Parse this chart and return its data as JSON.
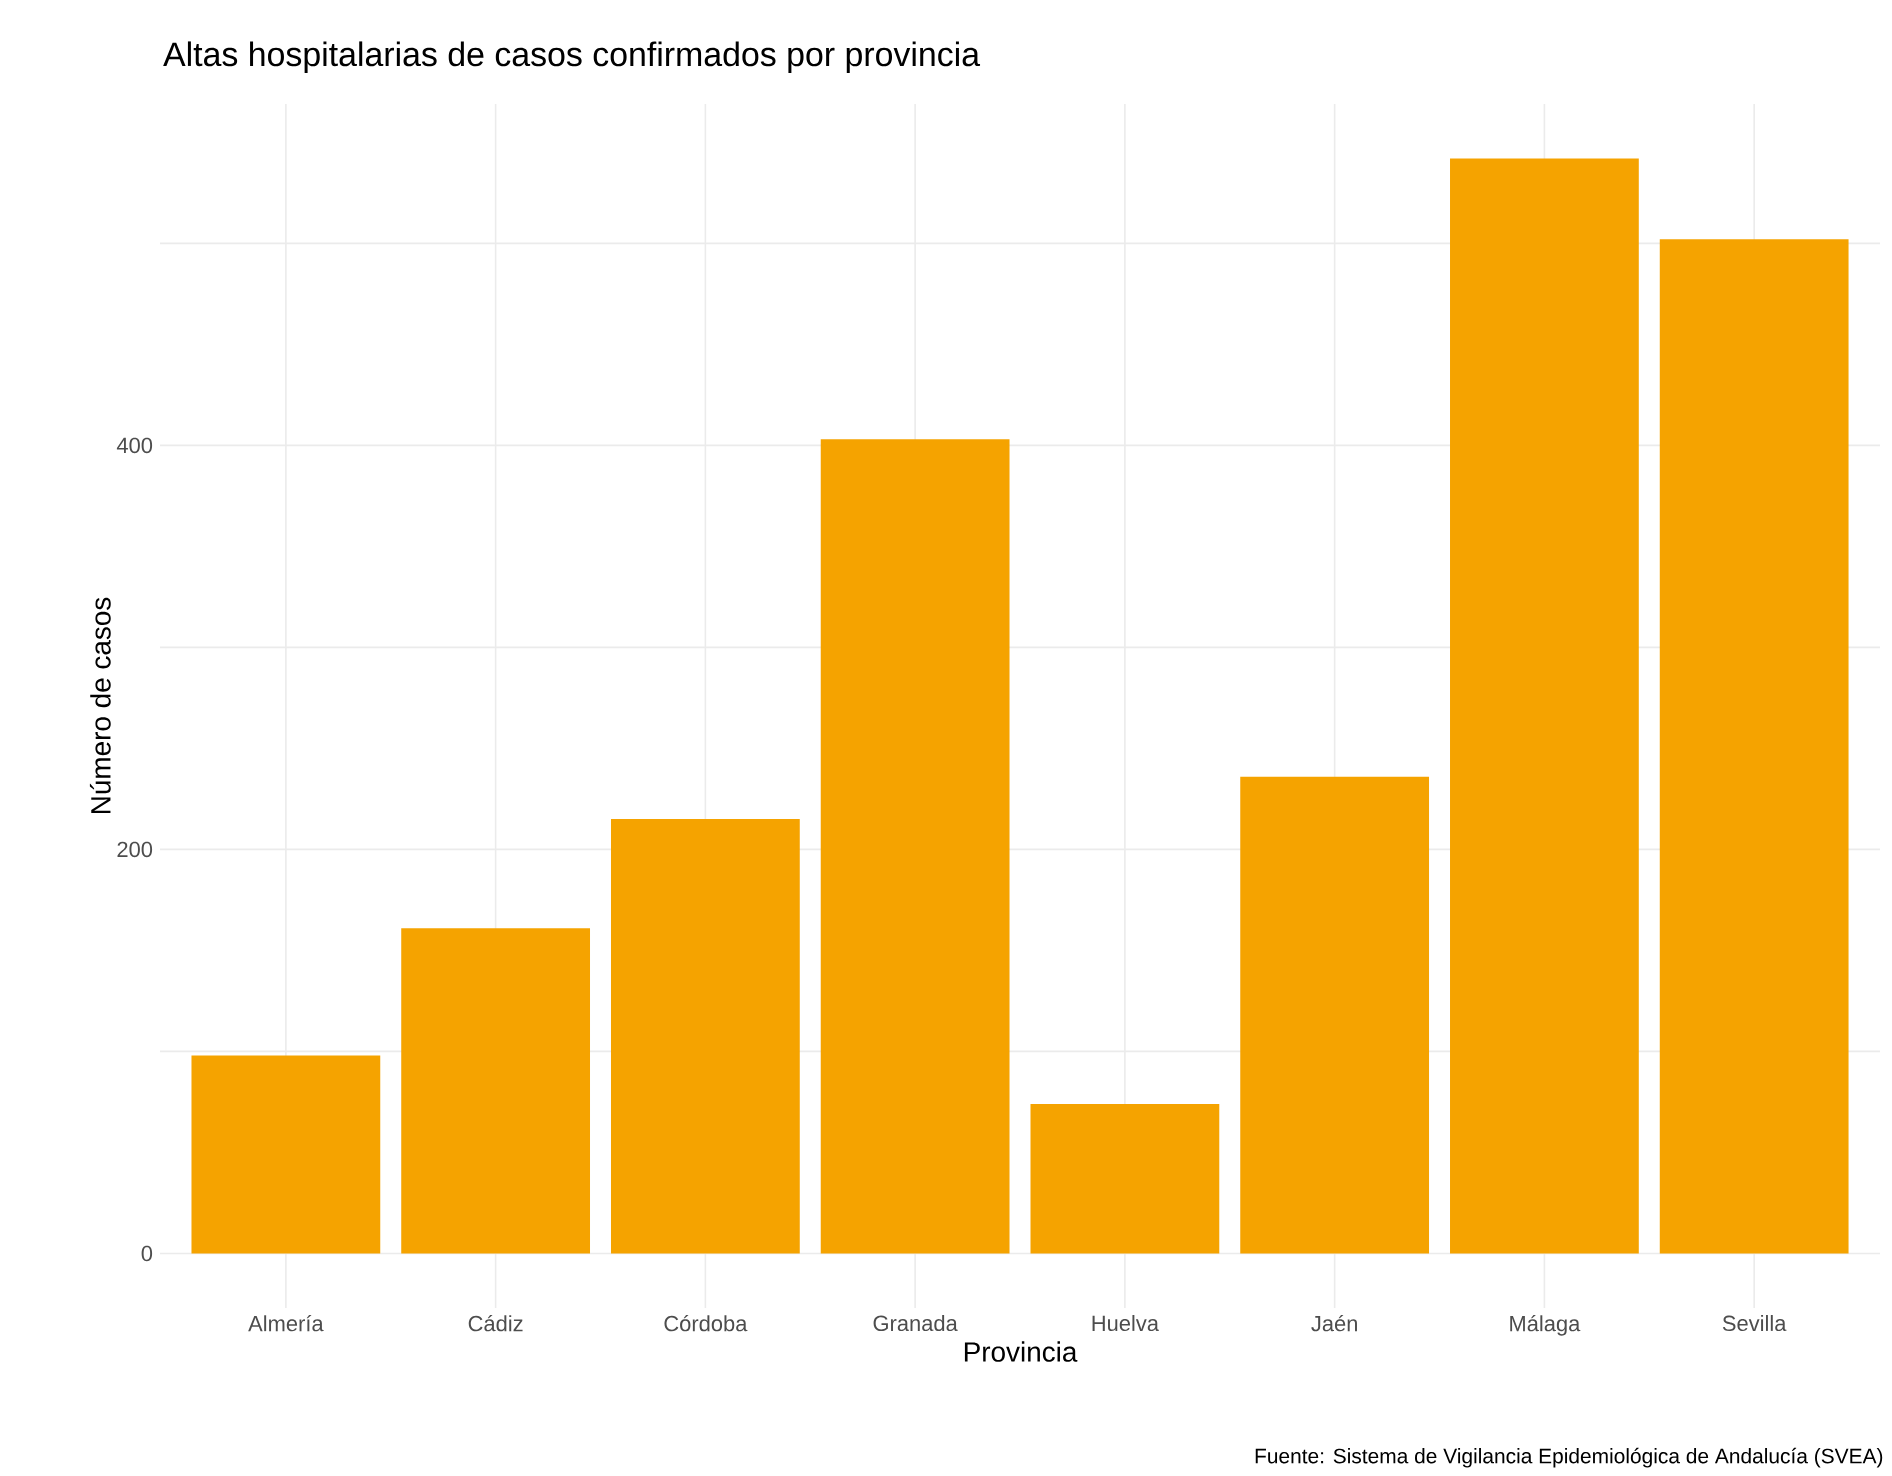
{
  "chart_data": {
    "type": "bar",
    "title": "Altas hospitalarias de casos confirmados por provincia",
    "xlabel": "Provincia",
    "ylabel": "Número de casos",
    "categories": [
      "Almería",
      "Cádiz",
      "Córdoba",
      "Granada",
      "Huelva",
      "Jaén",
      "Málaga",
      "Sevilla"
    ],
    "values": [
      98,
      161,
      215,
      403,
      74,
      236,
      542,
      502
    ],
    "color": "#f5a300",
    "ylim": [
      -27,
      569
    ],
    "yticks": [
      0,
      {
        "value": 100,
        "label": null
      },
      200,
      {
        "value": 300,
        "label": null
      },
      400,
      {
        "value": 500,
        "label": null
      }
    ],
    "grid": true,
    "annotations": [
      "Fuente: Sistema de Vigilancia Epidemiológica de Andalucía (SVEA)"
    ]
  }
}
